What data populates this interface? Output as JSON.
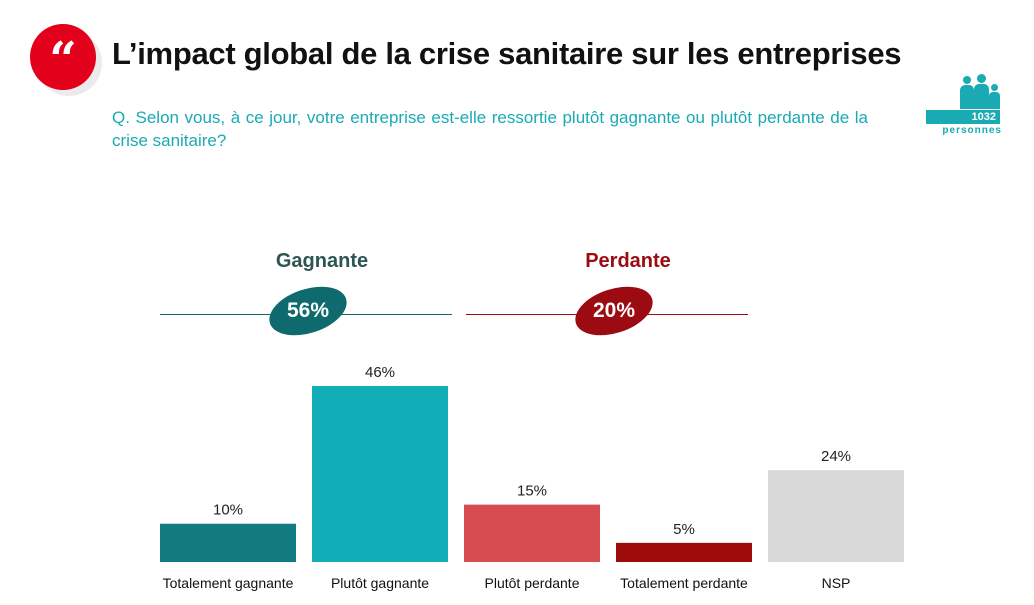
{
  "title": "L’impact global de la crise sanitaire sur les entreprises",
  "question": "Q. Selon vous, à ce jour, votre entreprise est-elle ressortie plutôt gagnante ou plutôt perdante de la crise sanitaire?",
  "sample": {
    "count": "1032",
    "unit": "personnes"
  },
  "groups": {
    "gain": {
      "label": "Gagnante",
      "value": "56%",
      "color": "#0f6a6e",
      "label_color": "#2c5554"
    },
    "loss": {
      "label": "Perdante",
      "value": "20%",
      "color": "#9c0a12",
      "label_color": "#9c0a12"
    }
  },
  "colors": {
    "accent": "#1aaab4",
    "quote_red": "#e2001a"
  },
  "icons": [
    "quote-icon",
    "people-icon"
  ],
  "chart_data": {
    "type": "bar",
    "categories": [
      "Totalement gagnante",
      "Plutôt gagnante",
      "Plutôt perdante",
      "Totalement perdante",
      "NSP"
    ],
    "values": [
      10,
      46,
      15,
      5,
      24
    ],
    "data_labels": [
      "10%",
      "46%",
      "15%",
      "5%",
      "24%"
    ],
    "colors": [
      "#127b80",
      "#12aeb7",
      "#d64c50",
      "#9c0a0a",
      "#d9d9d9"
    ],
    "ylim": [
      0,
      46
    ],
    "grid": false,
    "unit": "%"
  }
}
